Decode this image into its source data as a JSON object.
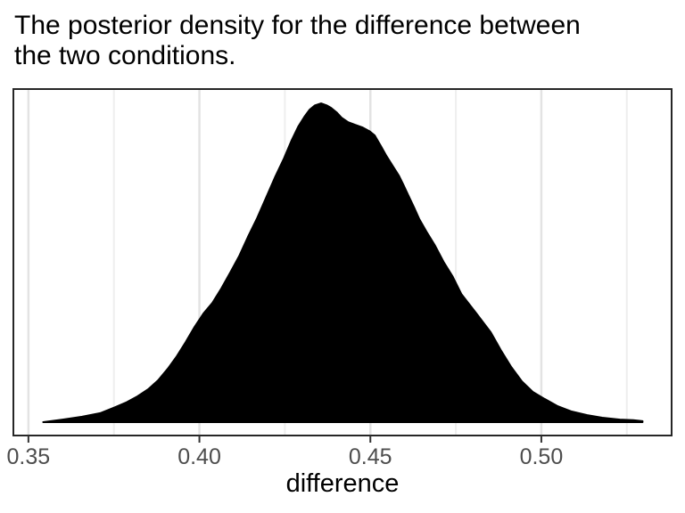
{
  "title": {
    "text": "The posterior density for the difference between the two conditions.",
    "lines": [
      "The posterior density for the difference between",
      "the two conditions."
    ]
  },
  "x_axis": {
    "label": "difference",
    "tick_labels": [
      "0.35",
      "0.40",
      "0.45",
      "0.50"
    ]
  },
  "colors": {
    "background": "#ffffff",
    "density_fill": "#000000",
    "density_stroke": "#000000",
    "panel_border": "#262626",
    "grid_major": "#e3e3e3",
    "grid_minor": "#eeeeee",
    "tick_mark": "#333333",
    "tick_label_text": "#4d4d4d",
    "title_text": "#000000",
    "axis_title_text": "#000000"
  },
  "chart_data": {
    "type": "area",
    "subtype": "density",
    "title": "The posterior density for the difference between the two conditions.",
    "xlabel": "difference",
    "ylabel": "",
    "xlim": [
      0.3456,
      0.5381
    ],
    "ylim": [
      -0.042,
      1.045
    ],
    "x_ticks": [
      0.35,
      0.4,
      0.45,
      0.5
    ],
    "x_tick_labels": [
      "0.35",
      "0.40",
      "0.45",
      "0.50"
    ],
    "x_minor_ticks": [
      0.375,
      0.425,
      0.475,
      0.525
    ],
    "grid": "vertical-only",
    "legend": "none",
    "y_axis_shown": false,
    "fill_color": "#000000",
    "series": [
      {
        "name": "posterior density of difference",
        "note": "y_relative is density scaled so the mode equals 1; mode at x = 0.4356",
        "x": [
          0.3543,
          0.36,
          0.3657,
          0.371,
          0.3749,
          0.3785,
          0.3819,
          0.385,
          0.3879,
          0.3908,
          0.3934,
          0.396,
          0.3986,
          0.4012,
          0.4038,
          0.4064,
          0.409,
          0.4116,
          0.4142,
          0.4169,
          0.4195,
          0.4221,
          0.4247,
          0.427,
          0.4289,
          0.4307,
          0.4322,
          0.4338,
          0.4356,
          0.4372,
          0.4385,
          0.4401,
          0.4416,
          0.4435,
          0.4455,
          0.4476,
          0.4497,
          0.4513,
          0.4531,
          0.4547,
          0.4565,
          0.4583,
          0.4596,
          0.4612,
          0.4628,
          0.4643,
          0.4664,
          0.4688,
          0.4714,
          0.474,
          0.4766,
          0.4808,
          0.4852,
          0.4883,
          0.4912,
          0.4943,
          0.4975,
          0.5009,
          0.5048,
          0.5087,
          0.5134,
          0.5178,
          0.523,
          0.5269,
          0.5296
        ],
        "y_relative": [
          0.0,
          0.008,
          0.017,
          0.028,
          0.045,
          0.061,
          0.081,
          0.103,
          0.131,
          0.168,
          0.207,
          0.251,
          0.299,
          0.341,
          0.374,
          0.419,
          0.469,
          0.52,
          0.581,
          0.64,
          0.704,
          0.768,
          0.827,
          0.885,
          0.927,
          0.958,
          0.98,
          0.994,
          1.0,
          0.994,
          0.986,
          0.972,
          0.955,
          0.941,
          0.933,
          0.925,
          0.913,
          0.899,
          0.866,
          0.835,
          0.804,
          0.774,
          0.746,
          0.709,
          0.673,
          0.637,
          0.598,
          0.556,
          0.503,
          0.458,
          0.402,
          0.344,
          0.282,
          0.223,
          0.173,
          0.128,
          0.095,
          0.073,
          0.05,
          0.034,
          0.022,
          0.014,
          0.008,
          0.006,
          0.003
        ]
      }
    ]
  }
}
